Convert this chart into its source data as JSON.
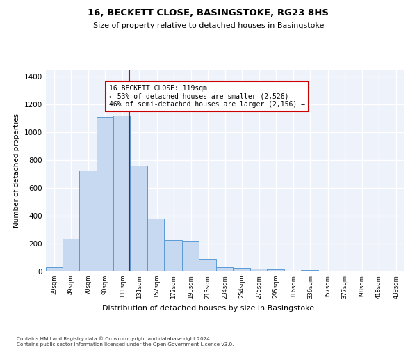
{
  "title": "16, BECKETT CLOSE, BASINGSTOKE, RG23 8HS",
  "subtitle": "Size of property relative to detached houses in Basingstoke",
  "xlabel": "Distribution of detached houses by size in Basingstoke",
  "ylabel": "Number of detached properties",
  "bar_color": "#c6d9f0",
  "bar_edge_color": "#5b9bd5",
  "background_color": "#eef3fb",
  "grid_color": "#ffffff",
  "vline_x": 119,
  "vline_color": "#cc0000",
  "annotation_line1": "16 BECKETT CLOSE: 119sqm",
  "annotation_line2": "← 53% of detached houses are smaller (2,526)",
  "annotation_line3": "46% of semi-detached houses are larger (2,156) →",
  "annotation_box_color": "#ffffff",
  "annotation_edge_color": "#cc0000",
  "footnote": "Contains HM Land Registry data © Crown copyright and database right 2024.\nContains public sector information licensed under the Open Government Licence v3.0.",
  "bin_edges": [
    19,
    39,
    59,
    80,
    100,
    120,
    141,
    161,
    182,
    202,
    223,
    243,
    264,
    284,
    305,
    325,
    346,
    366,
    387,
    407,
    428,
    449
  ],
  "bar_heights": [
    30,
    235,
    725,
    1110,
    1120,
    760,
    380,
    225,
    220,
    90,
    30,
    25,
    20,
    15,
    0,
    10,
    0,
    0,
    0,
    0,
    0
  ],
  "tick_labels": [
    "29sqm",
    "49sqm",
    "70sqm",
    "90sqm",
    "111sqm",
    "131sqm",
    "152sqm",
    "172sqm",
    "193sqm",
    "213sqm",
    "234sqm",
    "254sqm",
    "275sqm",
    "295sqm",
    "316sqm",
    "336sqm",
    "357sqm",
    "377sqm",
    "398sqm",
    "418sqm",
    "439sqm"
  ],
  "tick_positions": [
    29,
    49,
    70,
    90,
    111,
    131,
    152,
    172,
    193,
    213,
    234,
    254,
    275,
    295,
    316,
    336,
    357,
    377,
    398,
    418,
    439
  ],
  "ylim": [
    0,
    1450
  ],
  "xlim": [
    19,
    449
  ],
  "yticks": [
    0,
    200,
    400,
    600,
    800,
    1000,
    1200,
    1400
  ]
}
